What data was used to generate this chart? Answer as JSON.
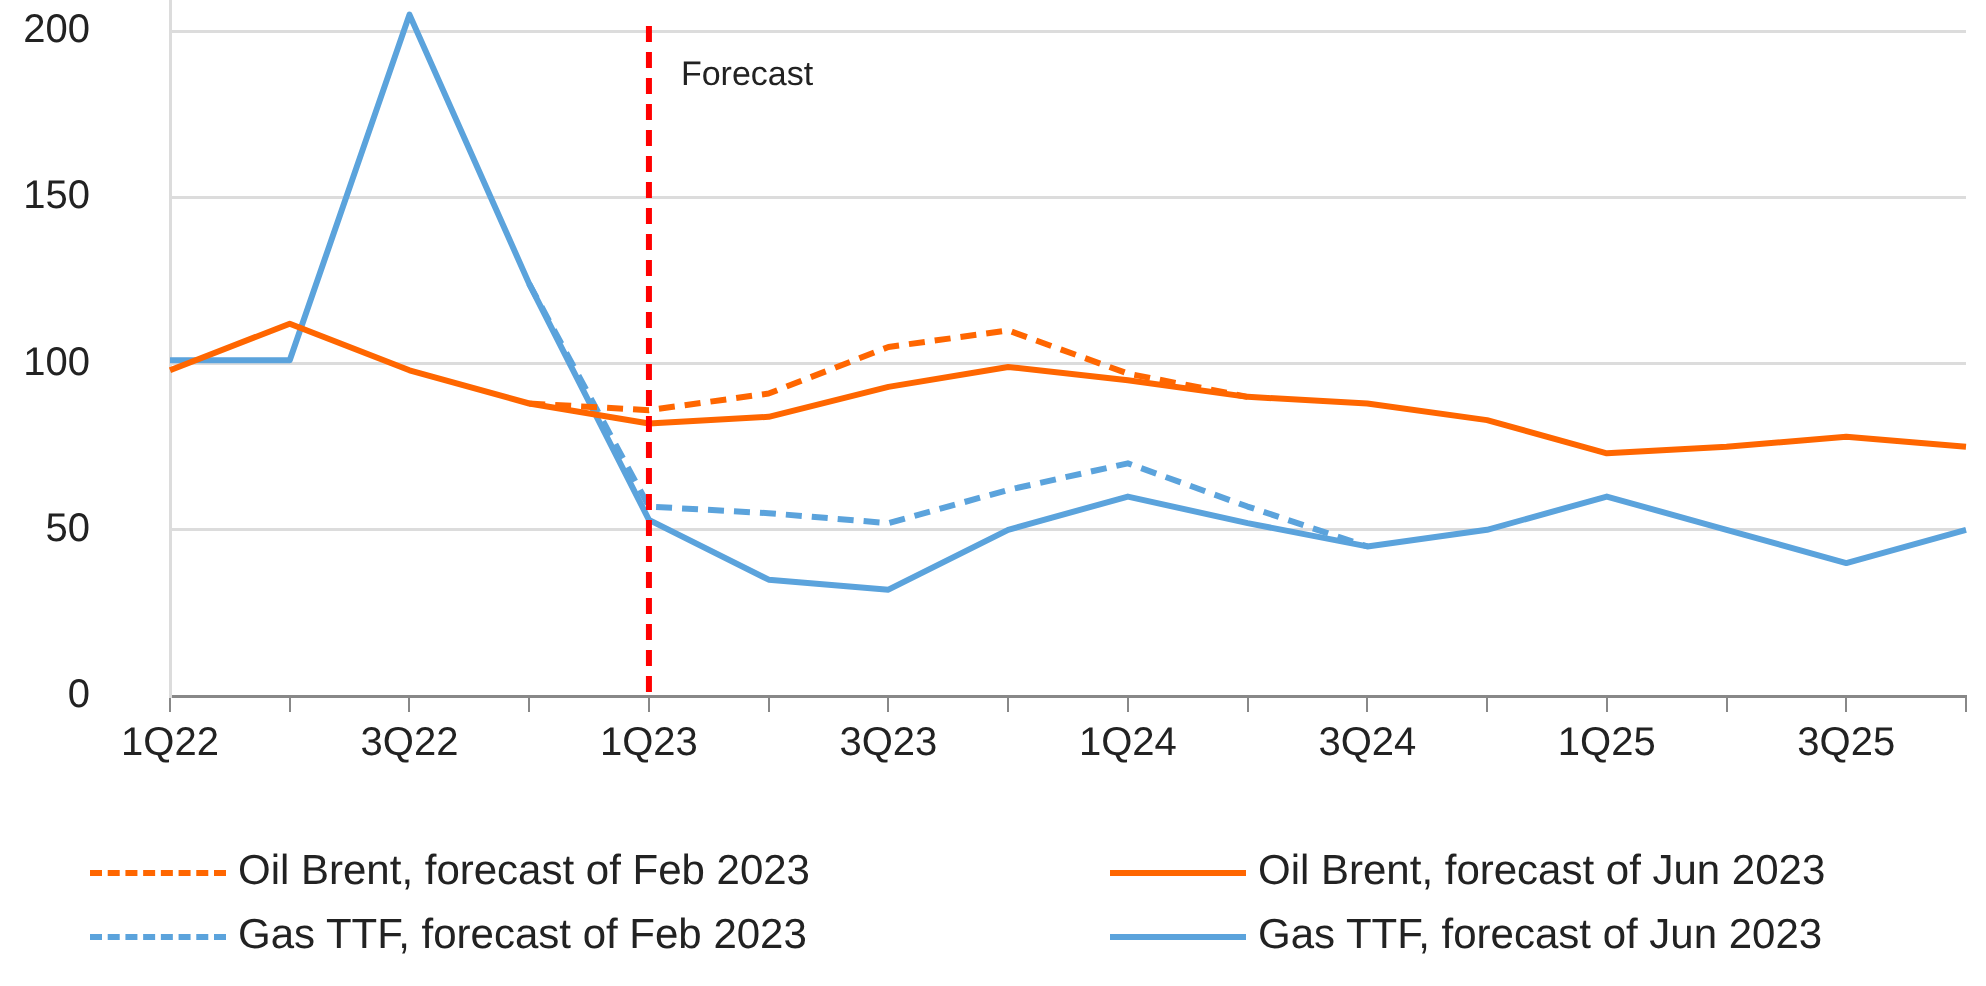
{
  "chart_data": {
    "type": "line",
    "categories": [
      "1Q22",
      null,
      "3Q22",
      null,
      "1Q23",
      null,
      "3Q23",
      null,
      "1Q24",
      null,
      "3Q24",
      null,
      "1Q25",
      null,
      "3Q25",
      null
    ],
    "series": [
      {
        "name": "Oil Brent, forecast of Feb 2023",
        "color": "#ff6600",
        "line_style": "dashed",
        "values": [
          null,
          null,
          null,
          88,
          86,
          91,
          105,
          110,
          97,
          90,
          null,
          null,
          null,
          null,
          null,
          null
        ]
      },
      {
        "name": "Oil Brent, forecast of Jun 2023",
        "color": "#ff6600",
        "line_style": "solid",
        "values": [
          98,
          112,
          98,
          88,
          82,
          84,
          93,
          99,
          95,
          90,
          88,
          83,
          73,
          75,
          78,
          75
        ]
      },
      {
        "name": "Gas TTF, forecast of Feb 2023",
        "color": "#5ba3dc",
        "line_style": "dashed",
        "values": [
          null,
          null,
          null,
          124,
          57,
          55,
          52,
          62,
          70,
          57,
          45,
          null,
          null,
          null,
          null,
          null
        ]
      },
      {
        "name": "Gas TTF, forecast of Jun 2023",
        "color": "#5ba3dc",
        "line_style": "solid",
        "values": [
          101,
          101,
          205,
          124,
          53,
          35,
          32,
          50,
          60,
          52,
          45,
          50,
          60,
          50,
          40,
          50
        ]
      }
    ],
    "ylim": [
      0,
      210
    ],
    "yticks": [
      0,
      50,
      100,
      150,
      200
    ],
    "grid": "y",
    "legend": "bottom",
    "marker": "none",
    "ref_lines": [
      {
        "axis": "x",
        "value": "1Q23",
        "label": "Forecast",
        "color": "#ff0000",
        "line_style": "dashed"
      }
    ]
  }
}
